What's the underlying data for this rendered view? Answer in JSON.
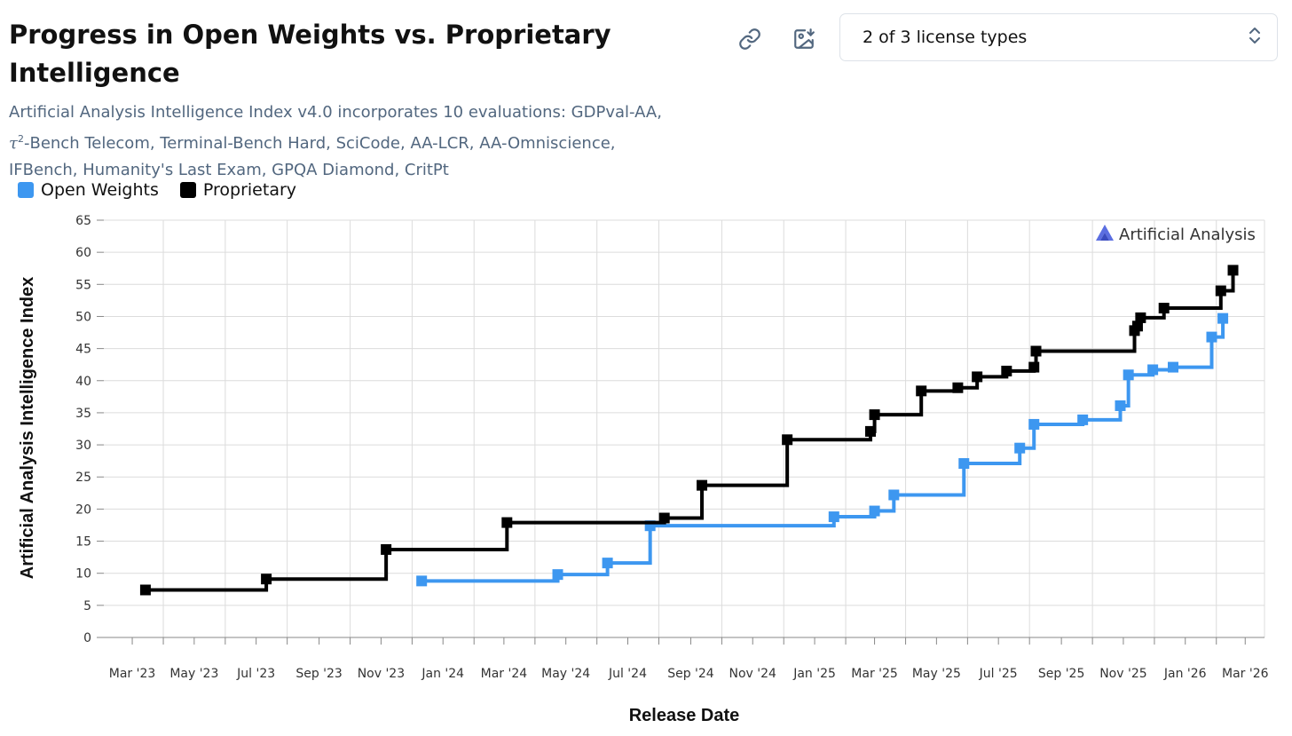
{
  "header": {
    "title": "Progress in Open Weights vs. Proprietary Intelligence",
    "subtitle_line1": "Artificial Analysis Intelligence Index v4.0 incorporates 10 evaluations: GDPval-AA,",
    "subtitle_tau": "τ",
    "subtitle_sup": "2",
    "subtitle_line2_rest": "-Bench Telecom, Terminal-Bench Hard, SciCode, AA-LCR, AA-Omniscience,",
    "subtitle_line3": "IFBench, Humanity's Last Exam, GPQA Diamond, CritPt"
  },
  "toolbar": {
    "link_icon": "link-icon",
    "download_icon": "image-download-icon",
    "dropdown_value": "2 of 3 license types",
    "dropdown_icon": "chevron-up-down-icon"
  },
  "watermark": {
    "text": "Artificial Analysis",
    "icon": "artificial-analysis-logo-icon",
    "color": "#5b6ee1"
  },
  "chart_data": {
    "type": "line",
    "step": true,
    "xlabel": "Release Date",
    "ylabel": "Artificial Analysis Intelligence Index",
    "ylim": [
      0,
      65
    ],
    "yticks": [
      0,
      5,
      10,
      15,
      20,
      25,
      30,
      35,
      40,
      45,
      50,
      55,
      60,
      65
    ],
    "xlim": [
      "2023-02-01",
      "2026-03-20"
    ],
    "xticks": [
      {
        "date": "2023-03-01",
        "label": "Mar '23"
      },
      {
        "date": "2023-05-01",
        "label": "May '23"
      },
      {
        "date": "2023-07-01",
        "label": "Jul '23"
      },
      {
        "date": "2023-09-01",
        "label": "Sep '23"
      },
      {
        "date": "2023-11-01",
        "label": "Nov '23"
      },
      {
        "date": "2024-01-01",
        "label": "Jan '24"
      },
      {
        "date": "2024-03-01",
        "label": "Mar '24"
      },
      {
        "date": "2024-05-01",
        "label": "May '24"
      },
      {
        "date": "2024-07-01",
        "label": "Jul '24"
      },
      {
        "date": "2024-09-01",
        "label": "Sep '24"
      },
      {
        "date": "2024-11-01",
        "label": "Nov '24"
      },
      {
        "date": "2025-01-01",
        "label": "Jan '25"
      },
      {
        "date": "2025-03-01",
        "label": "Mar '25"
      },
      {
        "date": "2025-05-01",
        "label": "May '25"
      },
      {
        "date": "2025-07-01",
        "label": "Jul '25"
      },
      {
        "date": "2025-09-01",
        "label": "Sep '25"
      },
      {
        "date": "2025-11-01",
        "label": "Nov '25"
      },
      {
        "date": "2026-01-01",
        "label": "Jan '26"
      },
      {
        "date": "2026-03-01",
        "label": "Mar '26"
      }
    ],
    "grid": true,
    "legend": "top-left",
    "series": [
      {
        "name": "Open Weights",
        "color": "#3d97f0",
        "points": [
          {
            "x": "2023-12-11",
            "y": 8.8
          },
          {
            "x": "2024-04-23",
            "y": 9.8
          },
          {
            "x": "2024-06-11",
            "y": 11.6
          },
          {
            "x": "2024-07-23",
            "y": 17.4
          },
          {
            "x": "2025-01-20",
            "y": 18.8
          },
          {
            "x": "2025-03-01",
            "y": 19.7
          },
          {
            "x": "2025-03-20",
            "y": 22.2
          },
          {
            "x": "2025-05-28",
            "y": 27.1
          },
          {
            "x": "2025-07-22",
            "y": 29.5
          },
          {
            "x": "2025-08-05",
            "y": 33.2
          },
          {
            "x": "2025-09-22",
            "y": 33.9
          },
          {
            "x": "2025-10-29",
            "y": 36.1
          },
          {
            "x": "2025-11-06",
            "y": 40.9
          },
          {
            "x": "2025-11-30",
            "y": 41.7
          },
          {
            "x": "2025-12-20",
            "y": 42.1
          },
          {
            "x": "2026-01-27",
            "y": 46.8
          },
          {
            "x": "2026-02-07",
            "y": 49.7
          }
        ]
      },
      {
        "name": "Proprietary",
        "color": "#000000",
        "points": [
          {
            "x": "2023-03-14",
            "y": 7.4
          },
          {
            "x": "2023-07-11",
            "y": 9.1
          },
          {
            "x": "2023-11-06",
            "y": 13.7
          },
          {
            "x": "2024-03-04",
            "y": 17.9
          },
          {
            "x": "2024-08-06",
            "y": 18.6
          },
          {
            "x": "2024-09-12",
            "y": 23.7
          },
          {
            "x": "2024-12-05",
            "y": 30.8
          },
          {
            "x": "2025-02-25",
            "y": 32.1
          },
          {
            "x": "2025-03-01",
            "y": 34.7
          },
          {
            "x": "2025-04-16",
            "y": 38.4
          },
          {
            "x": "2025-05-22",
            "y": 38.9
          },
          {
            "x": "2025-06-10",
            "y": 40.6
          },
          {
            "x": "2025-07-09",
            "y": 41.5
          },
          {
            "x": "2025-08-05",
            "y": 42.1
          },
          {
            "x": "2025-08-07",
            "y": 44.6
          },
          {
            "x": "2025-11-12",
            "y": 47.8
          },
          {
            "x": "2025-11-15",
            "y": 48.5
          },
          {
            "x": "2025-11-18",
            "y": 49.8
          },
          {
            "x": "2025-12-11",
            "y": 51.3
          },
          {
            "x": "2026-02-05",
            "y": 54.0
          },
          {
            "x": "2026-02-17",
            "y": 57.2
          }
        ]
      }
    ]
  }
}
